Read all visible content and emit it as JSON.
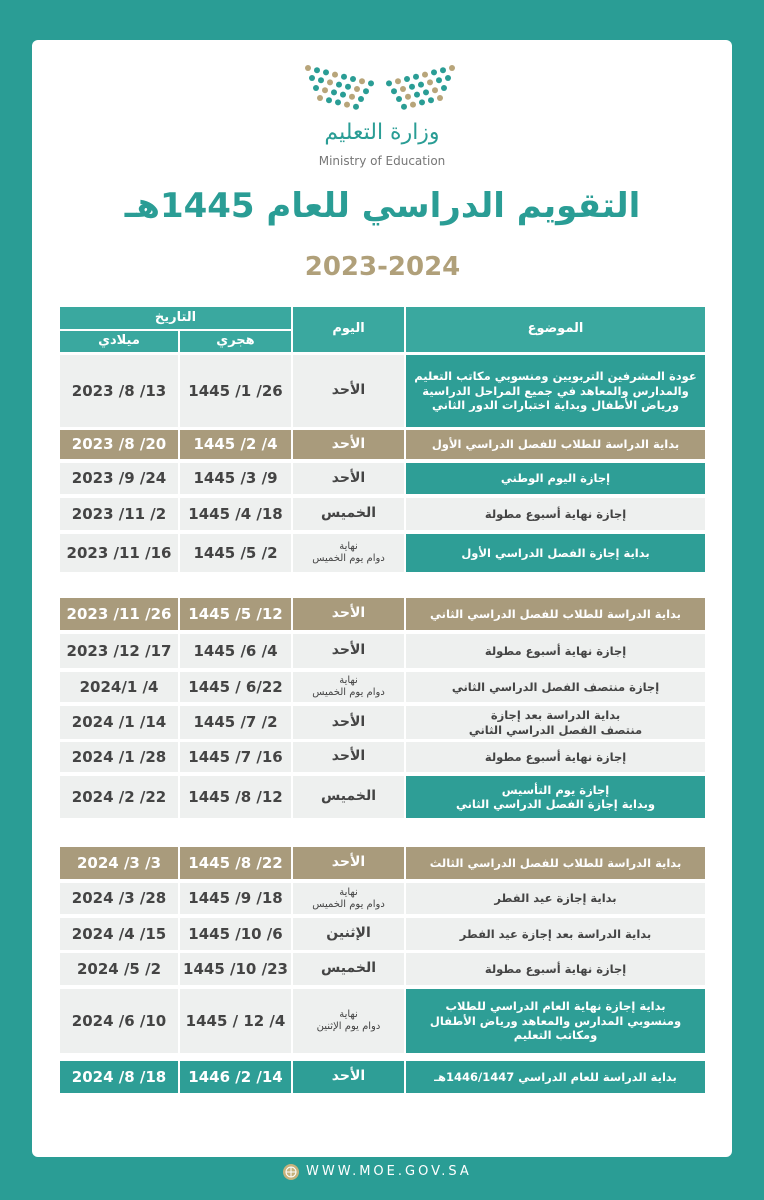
{
  "header": {
    "ministry_ar": "وزارة التعليم",
    "ministry_en": "Ministry of Education",
    "title": "التقويم الدراسي للعام 1445هـ",
    "subtitle": "2023-2024"
  },
  "table": {
    "headers": {
      "subject": "الموضوع",
      "day": "اليوم",
      "date": "التاريخ",
      "hijri": "هجري",
      "gregorian": "ميلادي"
    },
    "rows": [
      {
        "subject": [
          "عودة المشرفين التربويين ومنسوبي مكاتب التعليم",
          "والمدارس والمعاهد في جميع المراحل الدراسية",
          "ورياض الأطفال وبداية اختبارات الدور الثاني"
        ],
        "day": "الأحد",
        "hijri": "1445 /1 /26",
        "gregorian": "2023 /8 /13",
        "style": "subject"
      },
      {
        "subject": "بداية الدراسة للطلاب للفصل الدراسي الأول",
        "day": "الأحد",
        "hijri": "1445 /2 /4",
        "gregorian": "2023 /8 /20",
        "style": "gold"
      },
      {
        "subject": "إجازة اليوم الوطني",
        "day": "الأحد",
        "hijri": "1445 /3 /9",
        "gregorian": "2023 /9 /24",
        "style": "subject"
      },
      {
        "subject": "إجازة نهاية أسبوع مطولة",
        "day": "الخميس",
        "hijri": "1445 /4 /18",
        "gregorian": "2023 /11 /2",
        "style": "plain"
      },
      {
        "subject": "بداية إجازة الفصل الدراسي الأول",
        "day": [
          "نهاية",
          "دوام يوم الخميس"
        ],
        "hijri": "1445 /5 /2",
        "gregorian": "2023 /11 /16",
        "style": "subject"
      },
      {
        "subject": "بداية الدراسة للطلاب للفصل الدراسي الثاني",
        "day": "الأحد",
        "hijri": "1445 /5 /12",
        "gregorian": "2023 /11 /26",
        "style": "gold"
      },
      {
        "subject": "إجازة نهاية أسبوع مطولة",
        "day": "الأحد",
        "hijri": "1445 /6 /4",
        "gregorian": "2023 /12 /17",
        "style": "plain"
      },
      {
        "subject": "إجازة منتصف الفصل الدراسي الثاني",
        "day": [
          "نهاية",
          "دوام يوم الخميس"
        ],
        "hijri": "1445 / 6/22",
        "gregorian": "2024/1 /4",
        "style": "plain"
      },
      {
        "subject": [
          "بداية الدراسة بعد إجازة",
          "منتصف الفصل الدراسي الثاني"
        ],
        "day": "الأحد",
        "hijri": "1445 /7 /2",
        "gregorian": "2024 /1 /14",
        "style": "plain"
      },
      {
        "subject": "إجازة نهاية أسبوع مطولة",
        "day": "الأحد",
        "hijri": "1445 /7 /16",
        "gregorian": "2024 /1 /28",
        "style": "plain"
      },
      {
        "subject": [
          "إجازة يوم التأسيس",
          "وبداية إجازة الفصل الدراسي الثاني"
        ],
        "day": "الخميس",
        "hijri": "1445 /8 /12",
        "gregorian": "2024 /2 /22",
        "style": "subject"
      },
      {
        "subject": "بداية الدراسة للطلاب للفصل الدراسي الثالث",
        "day": "الأحد",
        "hijri": "1445 /8 /22",
        "gregorian": "2024 /3 /3",
        "style": "gold"
      },
      {
        "subject": "بداية إجازة عيد الفطر",
        "day": [
          "نهاية",
          "دوام يوم الخميس"
        ],
        "hijri": "1445 /9 /18",
        "gregorian": "2024 /3 /28",
        "style": "plain"
      },
      {
        "subject": "بداية الدراسة بعد إجازة عيد الفطر",
        "day": "الإثنين",
        "hijri": "1445 /10 /6",
        "gregorian": "2024 /4 /15",
        "style": "plain"
      },
      {
        "subject": "إجازة نهاية أسبوع مطولة",
        "day": "الخميس",
        "hijri": "1445 /10 /23",
        "gregorian": "2024 /5 /2",
        "style": "plain"
      },
      {
        "subject": [
          "بداية إجازة نهاية العام الدراسي للطلاب",
          "ومنسوبي المدارس والمعاهد ورياض الأطفال",
          "ومكاتب التعليم"
        ],
        "day": [
          "نهاية",
          "دوام يوم الإثنين"
        ],
        "hijri": "1445 / 12 /4",
        "gregorian": "2024 /6 /10",
        "style": "subject"
      },
      {
        "subject": "بداية الدراسة للعام الدراسي 1446/1447هـ",
        "day": "الأحد",
        "hijri": "1446 /2 /14",
        "gregorian": "2024 /8 /18",
        "style": "teal"
      }
    ]
  },
  "footer": {
    "website": "WWW.MOE.GOV.SA"
  }
}
